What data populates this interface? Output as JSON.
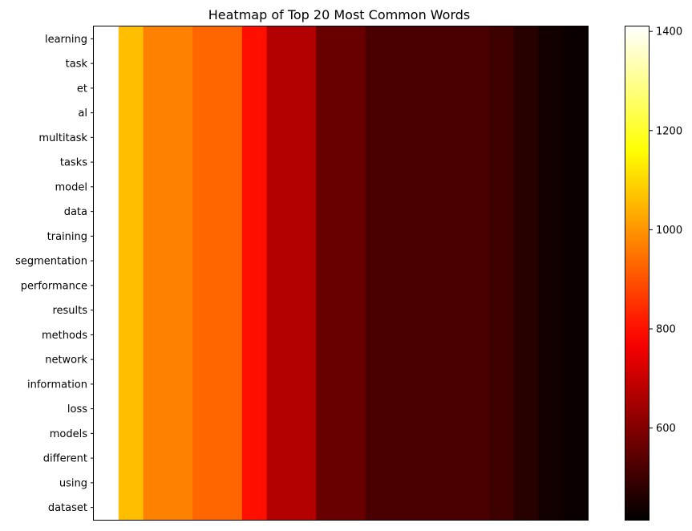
{
  "chart_data": {
    "type": "heatmap",
    "title": "Heatmap of Top 20 Most Common Words",
    "xlabel": "",
    "ylabel": "",
    "colormap": "hot",
    "color_range": [
      415,
      1410
    ],
    "x_ticks_shown": false,
    "grid": false,
    "colorbar": {
      "position": "right",
      "ticks": [
        600,
        800,
        1000,
        1200,
        1400
      ],
      "tick_labels": [
        "600",
        "800",
        "1000",
        "1200",
        "1400"
      ]
    },
    "words": [
      "learning",
      "task",
      "et",
      "al",
      "multitask",
      "tasks",
      "model",
      "data",
      "training",
      "segmentation",
      "performance",
      "results",
      "methods",
      "network",
      "information",
      "loss",
      "models",
      "different",
      "using",
      "dataset"
    ],
    "counts": [
      1410,
      1060,
      970,
      970,
      930,
      930,
      800,
      670,
      670,
      565,
      565,
      520,
      520,
      520,
      520,
      520,
      505,
      470,
      440,
      430
    ]
  }
}
